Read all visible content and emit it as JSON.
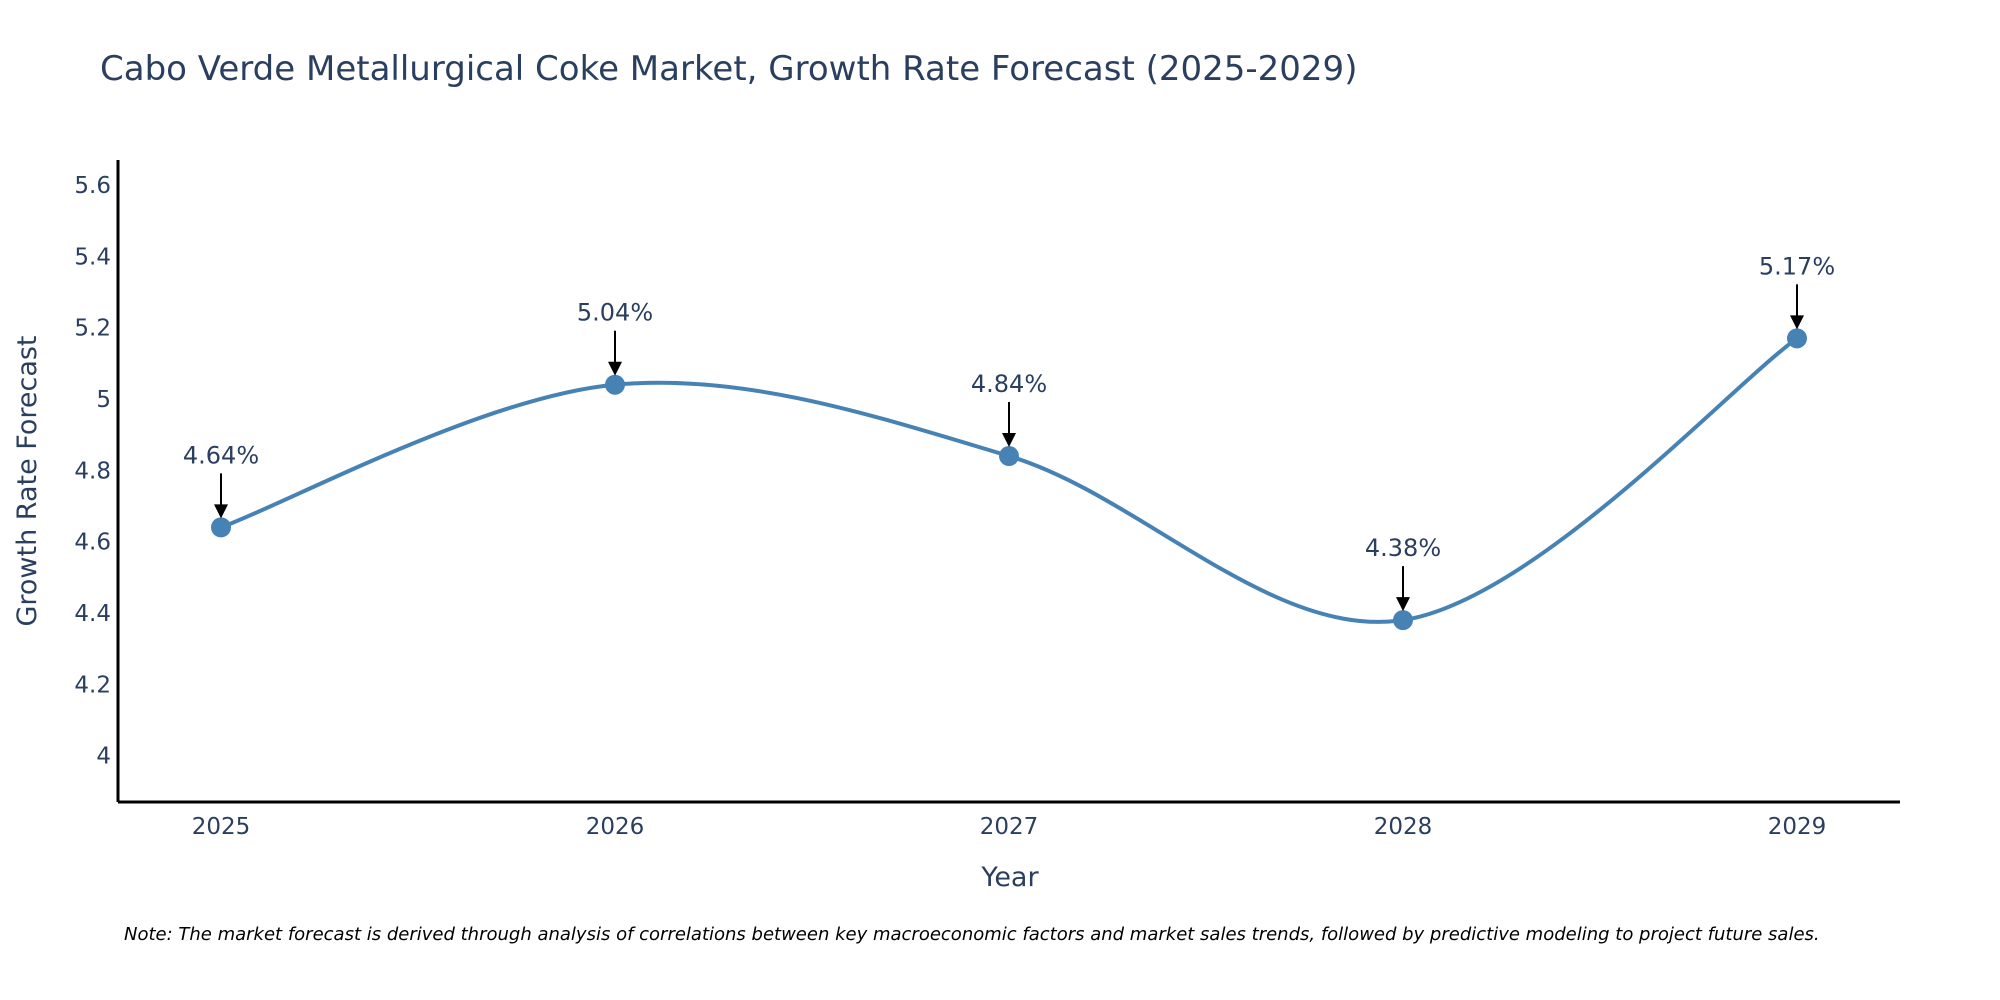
{
  "chart_data": {
    "type": "line",
    "title": "Cabo Verde Metallurgical Coke Market, Growth Rate Forecast (2025-2029)",
    "xlabel": "Year",
    "ylabel": "Growth Rate Forecast",
    "categories": [
      "2025",
      "2026",
      "2027",
      "2028",
      "2029"
    ],
    "series": [
      {
        "name": "Growth Rate Forecast",
        "values": [
          4.64,
          5.04,
          4.84,
          4.38,
          5.17
        ],
        "labels": [
          "4.64%",
          "5.04%",
          "4.84%",
          "4.38%",
          "5.17%"
        ]
      }
    ],
    "ylim": [
      3.87,
      5.67
    ],
    "yticks": [
      4,
      4.2,
      4.4,
      4.6,
      4.8,
      5,
      5.2,
      5.4,
      5.6
    ],
    "ytick_labels": [
      "4",
      "4.2",
      "4.4",
      "4.6",
      "4.8",
      "5",
      "5.2",
      "5.4",
      "5.6"
    ],
    "grid": false,
    "line_shape": "spline",
    "annotations": "arrow above each point with percentage label",
    "note": "Note: The market forecast is derived through analysis of correlations between key macroeconomic factors and market sales trends, followed by predictive modeling to project future sales."
  },
  "colors": {
    "line": "#4682b4",
    "marker": "#4682b4",
    "axis": "#000000",
    "text": "#2a3f5f",
    "arrow": "#000000"
  }
}
